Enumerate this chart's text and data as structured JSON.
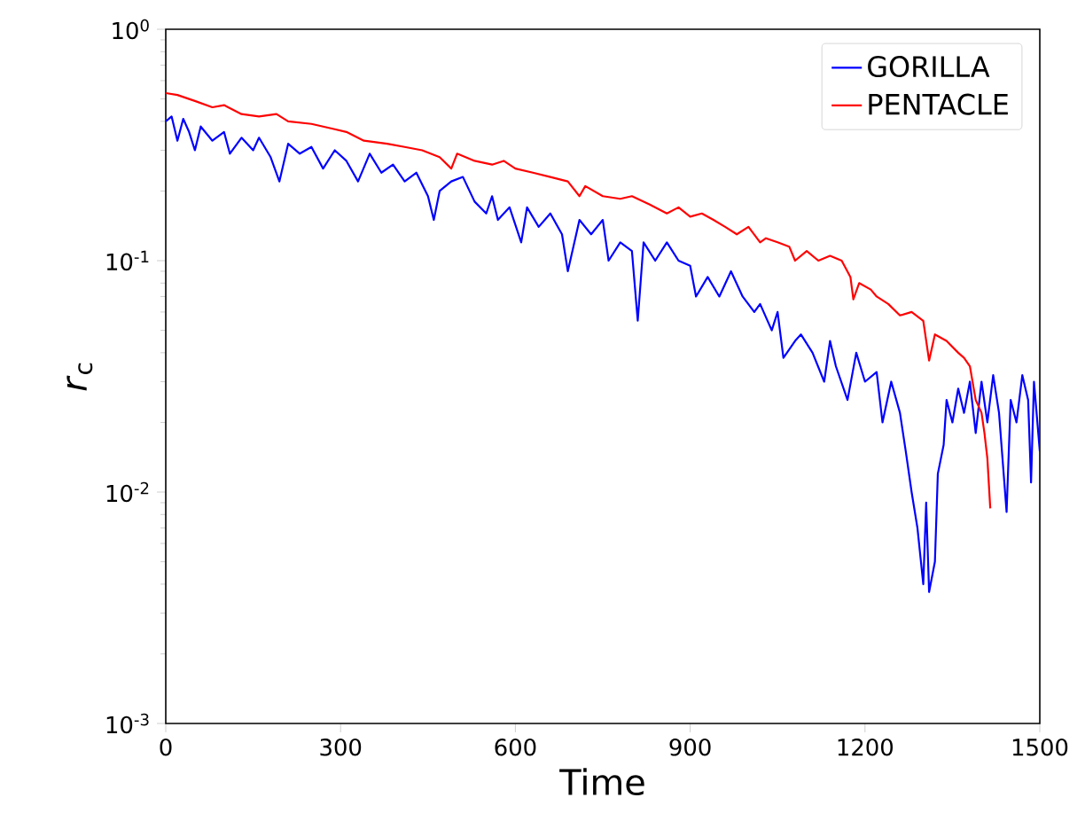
{
  "chart_data": {
    "type": "line",
    "xlabel": "Time",
    "ylabel": "*r*$_{c}$",
    "log": "y",
    "legend": "top right",
    "marker": "none",
    "line_style": "solid",
    "xlim": [
      0,
      1500
    ],
    "xticks": [
      0,
      300,
      600,
      900,
      1200,
      1500
    ],
    "ylim": [
      0.001,
      1
    ],
    "yticks": [
      {
        "value": 0.001,
        "label": "10$^{-3}$"
      },
      {
        "value": 0.01,
        "label": "10$^{-2}$"
      },
      {
        "value": 0.1,
        "label": "10$^{-1}$"
      },
      {
        "value": 1,
        "label": "10$^{0}$"
      }
    ],
    "series": [
      {
        "name": "GORILLA",
        "color": "#0000ff",
        "x": [
          0,
          10,
          20,
          30,
          40,
          50,
          60,
          80,
          100,
          110,
          130,
          150,
          160,
          180,
          195,
          210,
          230,
          250,
          270,
          290,
          310,
          330,
          350,
          370,
          390,
          410,
          430,
          450,
          460,
          470,
          490,
          510,
          530,
          550,
          560,
          570,
          590,
          610,
          620,
          640,
          660,
          680,
          690,
          710,
          730,
          750,
          760,
          780,
          800,
          810,
          820,
          840,
          860,
          880,
          900,
          910,
          930,
          950,
          970,
          990,
          1010,
          1020,
          1040,
          1050,
          1060,
          1080,
          1090,
          1110,
          1130,
          1140,
          1150,
          1170,
          1185,
          1200,
          1220,
          1230,
          1245,
          1260,
          1270,
          1280,
          1290,
          1300,
          1305,
          1310,
          1320,
          1325,
          1335,
          1340,
          1350,
          1360,
          1370,
          1380,
          1390,
          1400,
          1410,
          1420,
          1430,
          1443,
          1450,
          1460,
          1470,
          1480,
          1485,
          1490,
          1500
        ],
        "values": [
          0.4,
          0.42,
          0.33,
          0.41,
          0.36,
          0.3,
          0.38,
          0.33,
          0.36,
          0.29,
          0.34,
          0.3,
          0.34,
          0.28,
          0.22,
          0.32,
          0.29,
          0.31,
          0.25,
          0.3,
          0.27,
          0.22,
          0.29,
          0.24,
          0.26,
          0.22,
          0.24,
          0.19,
          0.15,
          0.2,
          0.22,
          0.23,
          0.18,
          0.16,
          0.19,
          0.15,
          0.17,
          0.12,
          0.17,
          0.14,
          0.16,
          0.13,
          0.09,
          0.15,
          0.13,
          0.15,
          0.1,
          0.12,
          0.11,
          0.055,
          0.12,
          0.1,
          0.12,
          0.1,
          0.095,
          0.07,
          0.085,
          0.07,
          0.09,
          0.07,
          0.06,
          0.065,
          0.05,
          0.06,
          0.038,
          0.045,
          0.048,
          0.04,
          0.03,
          0.045,
          0.035,
          0.025,
          0.04,
          0.03,
          0.033,
          0.02,
          0.03,
          0.022,
          0.015,
          0.01,
          0.007,
          0.004,
          0.009,
          0.0037,
          0.005,
          0.012,
          0.016,
          0.025,
          0.02,
          0.028,
          0.022,
          0.03,
          0.018,
          0.03,
          0.02,
          0.032,
          0.022,
          0.0082,
          0.025,
          0.02,
          0.032,
          0.025,
          0.011,
          0.03,
          0.015
        ]
      },
      {
        "name": "PENTACLE",
        "color": "#ff0000",
        "x": [
          0,
          20,
          50,
          80,
          100,
          130,
          160,
          190,
          210,
          250,
          290,
          310,
          340,
          380,
          410,
          440,
          470,
          490,
          500,
          530,
          560,
          580,
          600,
          630,
          660,
          690,
          710,
          720,
          750,
          780,
          800,
          830,
          860,
          880,
          900,
          920,
          940,
          960,
          980,
          1000,
          1020,
          1030,
          1050,
          1070,
          1080,
          1100,
          1120,
          1140,
          1160,
          1175,
          1180,
          1190,
          1210,
          1220,
          1240,
          1260,
          1280,
          1300,
          1310,
          1320,
          1340,
          1360,
          1370,
          1380,
          1390,
          1400,
          1405,
          1410,
          1415
        ],
        "values": [
          0.53,
          0.52,
          0.49,
          0.46,
          0.47,
          0.43,
          0.42,
          0.43,
          0.4,
          0.39,
          0.37,
          0.36,
          0.33,
          0.32,
          0.31,
          0.3,
          0.28,
          0.25,
          0.29,
          0.27,
          0.26,
          0.27,
          0.25,
          0.24,
          0.23,
          0.22,
          0.19,
          0.21,
          0.19,
          0.185,
          0.19,
          0.175,
          0.16,
          0.17,
          0.155,
          0.16,
          0.15,
          0.14,
          0.13,
          0.14,
          0.12,
          0.125,
          0.12,
          0.115,
          0.1,
          0.11,
          0.1,
          0.105,
          0.1,
          0.085,
          0.068,
          0.08,
          0.075,
          0.07,
          0.065,
          0.058,
          0.06,
          0.055,
          0.037,
          0.048,
          0.045,
          0.04,
          0.038,
          0.035,
          0.025,
          0.022,
          0.018,
          0.014,
          0.0085
        ]
      }
    ]
  }
}
